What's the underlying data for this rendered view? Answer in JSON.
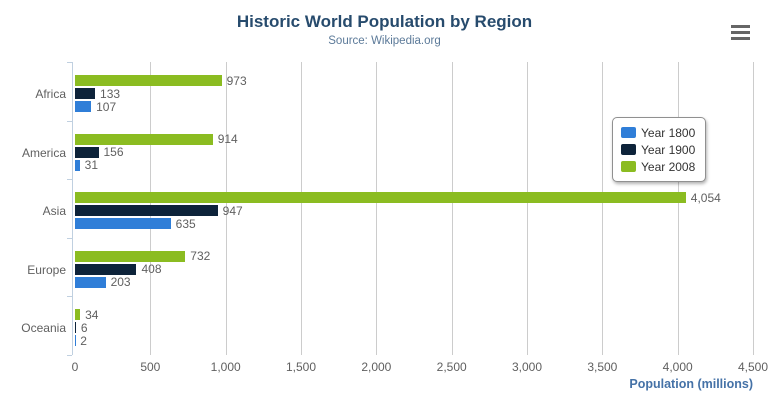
{
  "chart_data": {
    "type": "bar",
    "orientation": "horizontal",
    "title": "Historic World Population by Region",
    "subtitle": "Source: Wikipedia.org",
    "categories": [
      "Africa",
      "America",
      "Asia",
      "Europe",
      "Oceania"
    ],
    "series": [
      {
        "name": "Year 1800",
        "color": "#2f7ed8",
        "values": [
          107,
          31,
          635,
          203,
          2
        ]
      },
      {
        "name": "Year 1900",
        "color": "#0d233a",
        "values": [
          133,
          156,
          947,
          408,
          6
        ]
      },
      {
        "name": "Year 2008",
        "color": "#8bbc21",
        "values": [
          973,
          914,
          4054,
          732,
          34
        ]
      }
    ],
    "bar_display_order_top_to_bottom": [
      "Year 2008",
      "Year 1900",
      "Year 1800"
    ],
    "xlabel": "Population (millions)",
    "xlim": [
      0,
      4500
    ],
    "tick_interval": 500,
    "x_tick_labels": [
      "0",
      "500",
      "1,000",
      "1,500",
      "2,000",
      "2,500",
      "3,000",
      "3,500",
      "4,000",
      "4,500"
    ],
    "grid": true,
    "legend_position": "right",
    "data_labels_visible": true
  },
  "toolbar": {
    "context_menu_icon": "hamburger-menu-icon"
  }
}
